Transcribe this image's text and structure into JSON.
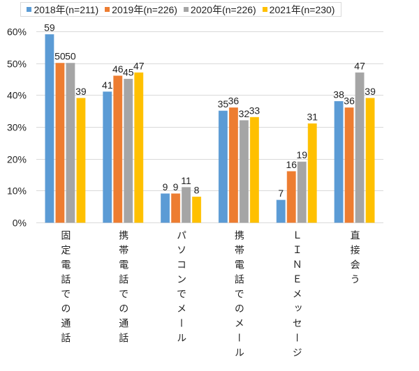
{
  "chart_data": {
    "type": "bar",
    "title": "",
    "xlabel": "",
    "ylabel": "",
    "ylim": [
      0,
      60
    ],
    "yticks": [
      0,
      10,
      20,
      30,
      40,
      50,
      60
    ],
    "ytick_labels": [
      "0%",
      "10%",
      "20%",
      "30%",
      "40%",
      "50%",
      "60%"
    ],
    "grid": true,
    "legend_position": "top",
    "categories": [
      "固定電話での通話",
      "携帯電話での通話",
      "パソコンでメール",
      "携帯電話でのメール",
      "ＬＩＮＥメッセージ",
      "直接会う"
    ],
    "series": [
      {
        "name": "2018年(n=211)",
        "color": "#5b9bd5",
        "values": [
          59,
          41,
          9,
          35,
          7,
          38
        ]
      },
      {
        "name": "2019年(n=226)",
        "color": "#ed7d31",
        "values": [
          50,
          46,
          9,
          36,
          16,
          36
        ]
      },
      {
        "name": "2020年(n=226)",
        "color": "#a5a5a5",
        "values": [
          50,
          45,
          11,
          32,
          19,
          47
        ]
      },
      {
        "name": "2021年(n=230)",
        "color": "#ffc000",
        "values": [
          39,
          47,
          8,
          33,
          31,
          39
        ]
      }
    ]
  }
}
